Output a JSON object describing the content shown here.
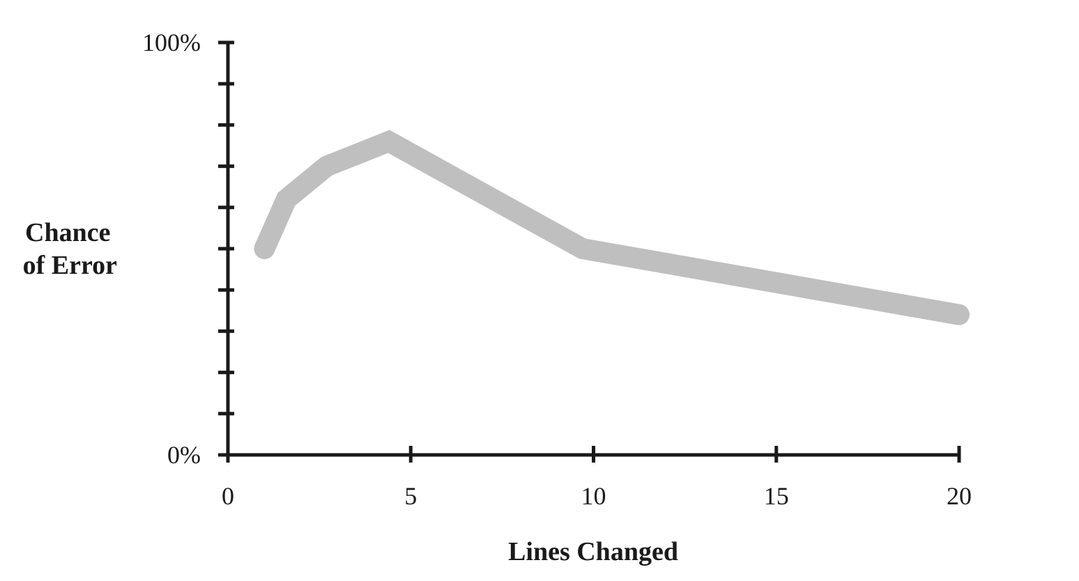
{
  "chart_data": {
    "type": "line",
    "title": "",
    "xlabel": "Lines Changed",
    "ylabel_lines": [
      "Chance",
      "of Error"
    ],
    "xlim": [
      0,
      20
    ],
    "ylim": [
      0,
      100
    ],
    "x_ticks": [
      0,
      5,
      10,
      15,
      20
    ],
    "x_tick_labels": [
      "0",
      "5",
      "10",
      "15",
      "20"
    ],
    "y_ticks": [
      0,
      10,
      20,
      30,
      40,
      50,
      60,
      70,
      80,
      90,
      100
    ],
    "y_tick_labels": [
      {
        "value": 0,
        "label": "0%"
      },
      {
        "value": 100,
        "label": "100%"
      }
    ],
    "grid": false,
    "legend": "none",
    "colors": {
      "axis": "#1a1a1a",
      "series": "#bfbfbf"
    },
    "series": [
      {
        "x": [
          1,
          1.6,
          2.7,
          4.4,
          9.7,
          20
        ],
        "values": [
          50,
          62,
          70,
          76,
          50,
          34
        ]
      }
    ]
  }
}
